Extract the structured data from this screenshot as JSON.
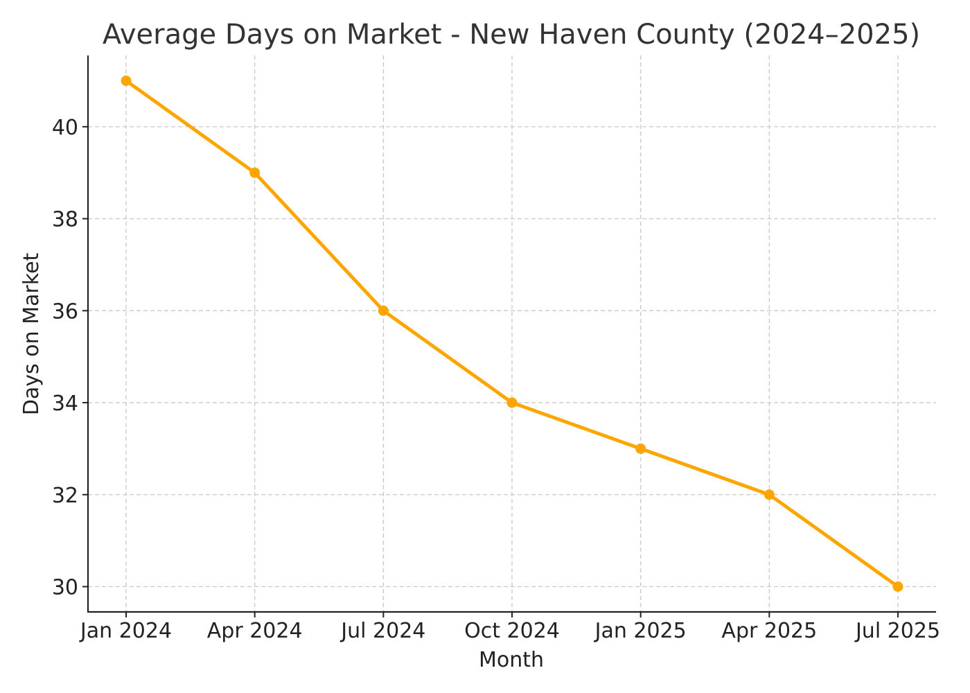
{
  "chart_data": {
    "type": "line",
    "title": "Average Days on Market - New Haven County (2024–2025)",
    "xlabel": "Month",
    "ylabel": "Days on Market",
    "categories": [
      "Jan 2024",
      "Apr 2024",
      "Jul 2024",
      "Oct 2024",
      "Jan 2025",
      "Apr 2025",
      "Jul 2025"
    ],
    "series": [
      {
        "values": [
          41,
          39,
          36,
          34,
          33,
          32,
          30
        ]
      }
    ],
    "yticks": [
      30,
      32,
      34,
      36,
      38,
      40
    ],
    "ylim": [
      29.45,
      41.55
    ],
    "grid": true,
    "legend": "none",
    "colors": {
      "line": "#FFA500",
      "grid": "#c8c8c8",
      "axis": "#222222",
      "title": "#333333"
    }
  }
}
